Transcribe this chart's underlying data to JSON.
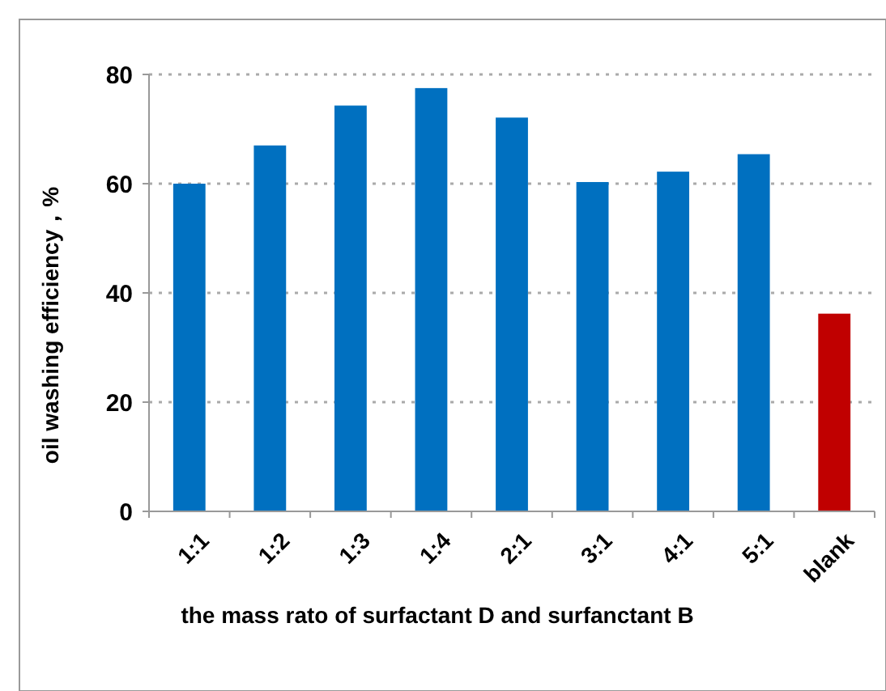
{
  "chart_data": {
    "type": "bar",
    "xlabel": "the mass rato of surfactant D and surfanctant B",
    "ylabel": "oil  washing efficiency，%",
    "categories": [
      "1:1",
      "1:2",
      "1:3",
      "1:4",
      "2:1",
      "3:1",
      "4:1",
      "5:1",
      "blank"
    ],
    "values": [
      60,
      67,
      74.3,
      77.5,
      72.1,
      60.3,
      62.2,
      65.4,
      36.2
    ],
    "colors": [
      "#0070c0",
      "#0070c0",
      "#0070c0",
      "#0070c0",
      "#0070c0",
      "#0070c0",
      "#0070c0",
      "#0070c0",
      "#c00000"
    ],
    "ylim": [
      0,
      80
    ],
    "yticks": [
      0,
      20,
      40,
      60,
      80
    ],
    "grid": "y"
  }
}
